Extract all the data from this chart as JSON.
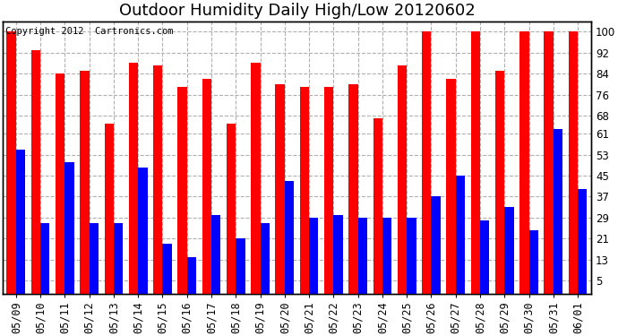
{
  "title": "Outdoor Humidity Daily High/Low 20120602",
  "copyright_text": "Copyright 2012  Cartronics.com",
  "dates": [
    "05/09",
    "05/10",
    "05/11",
    "05/12",
    "05/13",
    "05/14",
    "05/15",
    "05/16",
    "05/17",
    "05/18",
    "05/19",
    "05/20",
    "05/21",
    "05/22",
    "05/23",
    "05/24",
    "05/25",
    "05/26",
    "05/27",
    "05/28",
    "05/29",
    "05/30",
    "05/31",
    "06/01"
  ],
  "high_values": [
    100,
    93,
    84,
    85,
    65,
    88,
    87,
    79,
    82,
    65,
    88,
    80,
    79,
    79,
    80,
    67,
    87,
    100,
    82,
    100,
    85,
    100,
    100,
    100
  ],
  "low_values": [
    55,
    27,
    50,
    27,
    27,
    48,
    19,
    14,
    30,
    21,
    27,
    43,
    29,
    30,
    29,
    29,
    29,
    37,
    45,
    28,
    33,
    24,
    63,
    40
  ],
  "bar_color_high": "#ff0000",
  "bar_color_low": "#0000ff",
  "background_color": "#ffffff",
  "grid_color": "#b0b0b0",
  "yticks": [
    5,
    13,
    21,
    29,
    37,
    45,
    53,
    61,
    68,
    76,
    84,
    92,
    100
  ],
  "ylim": [
    0,
    104
  ],
  "bar_width": 0.38,
  "title_fontsize": 13,
  "tick_fontsize": 8.5,
  "copyright_fontsize": 7.5
}
